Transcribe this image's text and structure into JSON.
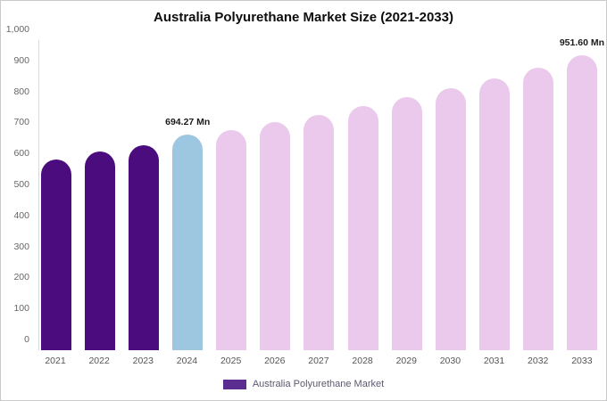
{
  "title": "Australia Polyurethane Market Size (2021-2033)",
  "chart_data": {
    "type": "bar",
    "title": "Australia Polyurethane Market Size (2021-2033)",
    "categories": [
      "2021",
      "2022",
      "2023",
      "2024",
      "2025",
      "2026",
      "2027",
      "2028",
      "2029",
      "2030",
      "2031",
      "2032",
      "2033"
    ],
    "values": [
      615,
      640,
      662,
      694.27,
      710,
      736,
      760,
      788,
      815,
      845,
      875,
      910,
      951.6
    ],
    "ylim": [
      0,
      1000
    ],
    "yticks": [
      0,
      100,
      200,
      300,
      400,
      500,
      600,
      700,
      800,
      900,
      1000
    ],
    "ytick_labels": [
      "0",
      "100",
      "200",
      "300",
      "400",
      "500",
      "600",
      "700",
      "800",
      "900",
      "1,000"
    ],
    "grid": false,
    "annotations": [
      {
        "index": 3,
        "text": "694.27 Mn"
      },
      {
        "index": 12,
        "text": "951.60 Mn"
      }
    ],
    "colors": {
      "dark": "#4B0D7E",
      "highlight": "#9DC6E0",
      "light": "#EAC9EC"
    },
    "color_map": [
      "dark",
      "dark",
      "dark",
      "highlight",
      "light",
      "light",
      "light",
      "light",
      "light",
      "light",
      "light",
      "light",
      "light"
    ],
    "legend": {
      "position": "bottom",
      "items": [
        {
          "label": "Australia Polyurethane Market",
          "color": "#5B2D91"
        }
      ]
    }
  }
}
